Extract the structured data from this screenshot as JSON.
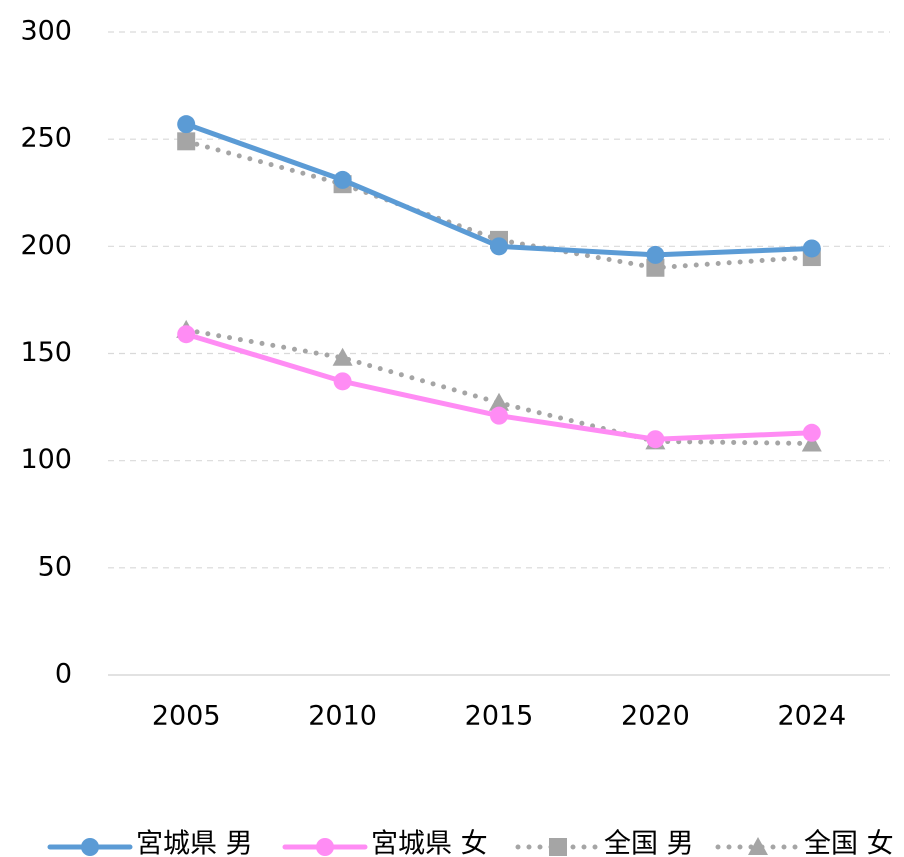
{
  "chart_data": {
    "type": "line",
    "categories": [
      "2005",
      "2010",
      "2015",
      "2020",
      "2024"
    ],
    "series": [
      {
        "name": "宮城県 男",
        "color": "#5b9bd5",
        "dash": "solid",
        "marker": "circle",
        "values": [
          257,
          231,
          200,
          196,
          199
        ]
      },
      {
        "name": "宮城県 女",
        "color": "#ff8cf4",
        "dash": "solid",
        "marker": "circle",
        "values": [
          159,
          137,
          121,
          110,
          113
        ]
      },
      {
        "name": "全国 男",
        "color": "#a5a5a5",
        "dash": "dotted",
        "marker": "square",
        "values": [
          249,
          229,
          203,
          190,
          195
        ]
      },
      {
        "name": "全国 女",
        "color": "#a5a5a5",
        "dash": "dotted",
        "marker": "triangle",
        "values": [
          161,
          148,
          127,
          109,
          108
        ]
      }
    ],
    "ylim": [
      0,
      300
    ],
    "yticks": [
      0,
      50,
      100,
      150,
      200,
      250,
      300
    ],
    "grid": true,
    "legend": "bottom"
  }
}
